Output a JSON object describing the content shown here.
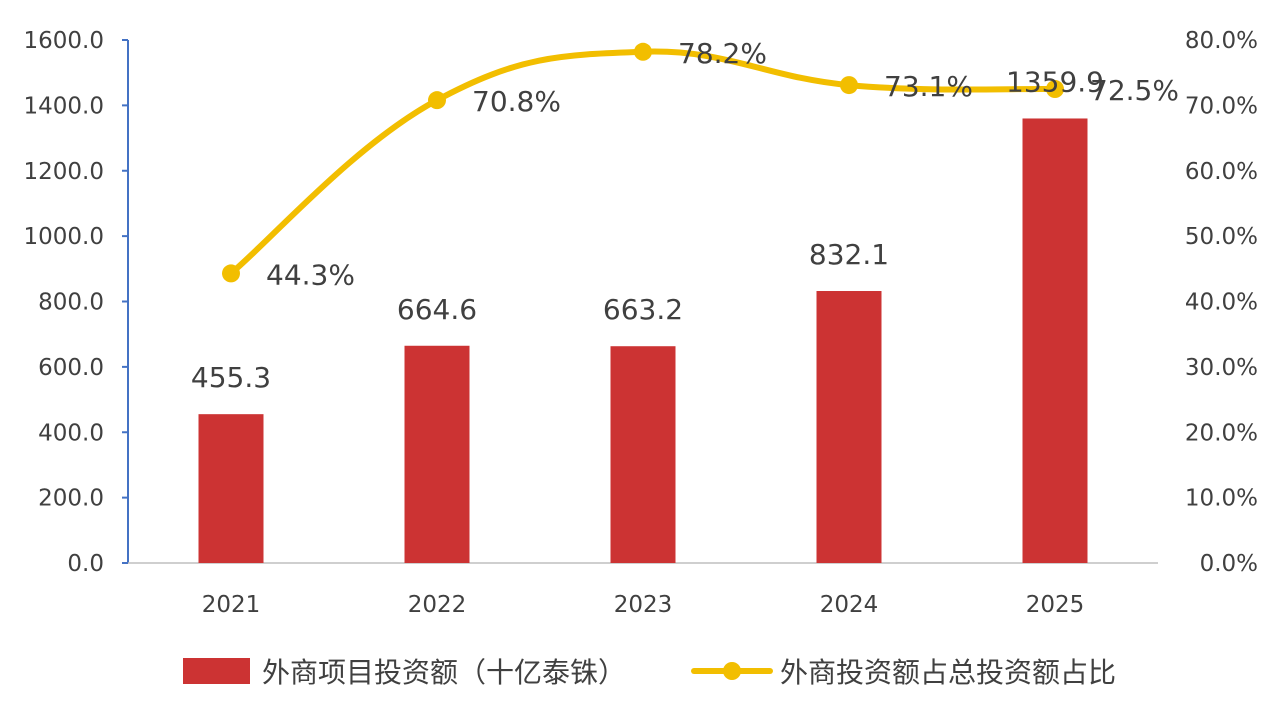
{
  "chart_data": {
    "type": "bar+line",
    "categories": [
      "2021",
      "2022",
      "2023",
      "2024",
      "2025"
    ],
    "series": [
      {
        "name": "外商项目投资额（十亿泰铢）",
        "type": "bar",
        "axis": "left",
        "values": [
          455.3,
          664.6,
          663.2,
          832.1,
          1359.9
        ],
        "labels": [
          "455.3",
          "664.6",
          "663.2",
          "832.1",
          "1359.9"
        ],
        "color": "#CC3333"
      },
      {
        "name": "外商投资额占总投资额占比",
        "type": "line",
        "axis": "right",
        "values": [
          44.3,
          70.8,
          78.2,
          73.1,
          72.5
        ],
        "labels": [
          "44.3%",
          "70.8%",
          "78.2%",
          "73.1%",
          "72.5%"
        ],
        "color": "#F2BE00"
      }
    ],
    "y_left": {
      "ylim": [
        0,
        1600
      ],
      "ticks": [
        "0.0",
        "200.0",
        "400.0",
        "600.0",
        "800.0",
        "1000.0",
        "1200.0",
        "1400.0",
        "1600.0"
      ]
    },
    "y_right": {
      "ylim": [
        0,
        80
      ],
      "ticks": [
        "0.0%",
        "10.0%",
        "20.0%",
        "30.0%",
        "40.0%",
        "50.0%",
        "60.0%",
        "70.0%",
        "80.0%"
      ]
    },
    "legend_position": "bottom",
    "grid": false,
    "axis_color": "#4472C4"
  }
}
